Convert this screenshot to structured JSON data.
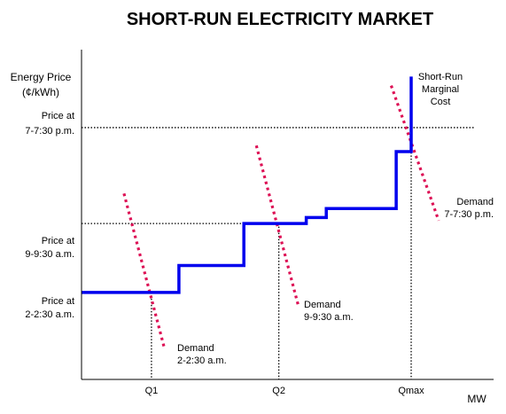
{
  "chart_data": {
    "type": "line",
    "title": "SHORT-RUN ELECTRICITY MARKET",
    "ylabel_line1": "Energy Price",
    "ylabel_line2": "(¢/kWh)",
    "xlabel": "MW",
    "x_ticks": [
      "Q1",
      "Q2",
      "Qmax"
    ],
    "price_levels": [
      {
        "line1": "Price at",
        "line2": "7-7:30 p.m."
      },
      {
        "line1": "Price at",
        "line2": "9-9:30 a.m."
      },
      {
        "line1": "Price at",
        "line2": "2-2:30 a.m."
      }
    ],
    "series": [
      {
        "name": "Short-Run Marginal Cost",
        "name_lines": [
          "Short-Run",
          "Marginal",
          "Cost"
        ],
        "style": "solid-step",
        "color": "#0000ee",
        "points": [
          [
            0,
            29
          ],
          [
            39,
            29
          ],
          [
            39,
            38
          ],
          [
            65,
            38
          ],
          [
            65,
            52
          ],
          [
            90,
            52
          ],
          [
            90,
            54
          ],
          [
            98,
            54
          ],
          [
            98,
            57
          ],
          [
            126,
            57
          ],
          [
            126,
            76
          ],
          [
            132,
            76
          ],
          [
            132,
            101
          ]
        ]
      },
      {
        "name": "Demand 2-2:30 a.m.",
        "name_lines": [
          "Demand",
          "2-2:30 a.m."
        ],
        "style": "dotted",
        "color": "#dd1155",
        "points": [
          [
            17,
            62
          ],
          [
            33,
            11
          ]
        ]
      },
      {
        "name": "Demand 9-9:30 a.m.",
        "name_lines": [
          "Demand",
          "9-9:30 a.m."
        ],
        "style": "dotted",
        "color": "#dd1155",
        "points": [
          [
            70,
            78
          ],
          [
            87,
            24
          ]
        ]
      },
      {
        "name": "Demand 7-7:30 p.m.",
        "name_lines": [
          "Demand",
          "7-7:30 p.m."
        ],
        "style": "dotted",
        "color": "#dd1155",
        "points": [
          [
            124,
            98
          ],
          [
            143,
            53
          ]
        ]
      }
    ],
    "reference_lines": {
      "prices": [
        84,
        52,
        29
      ],
      "quantities": [
        28,
        79,
        132
      ]
    },
    "xlim": [
      0,
      165
    ],
    "ylim": [
      0,
      110
    ],
    "grid": false
  }
}
